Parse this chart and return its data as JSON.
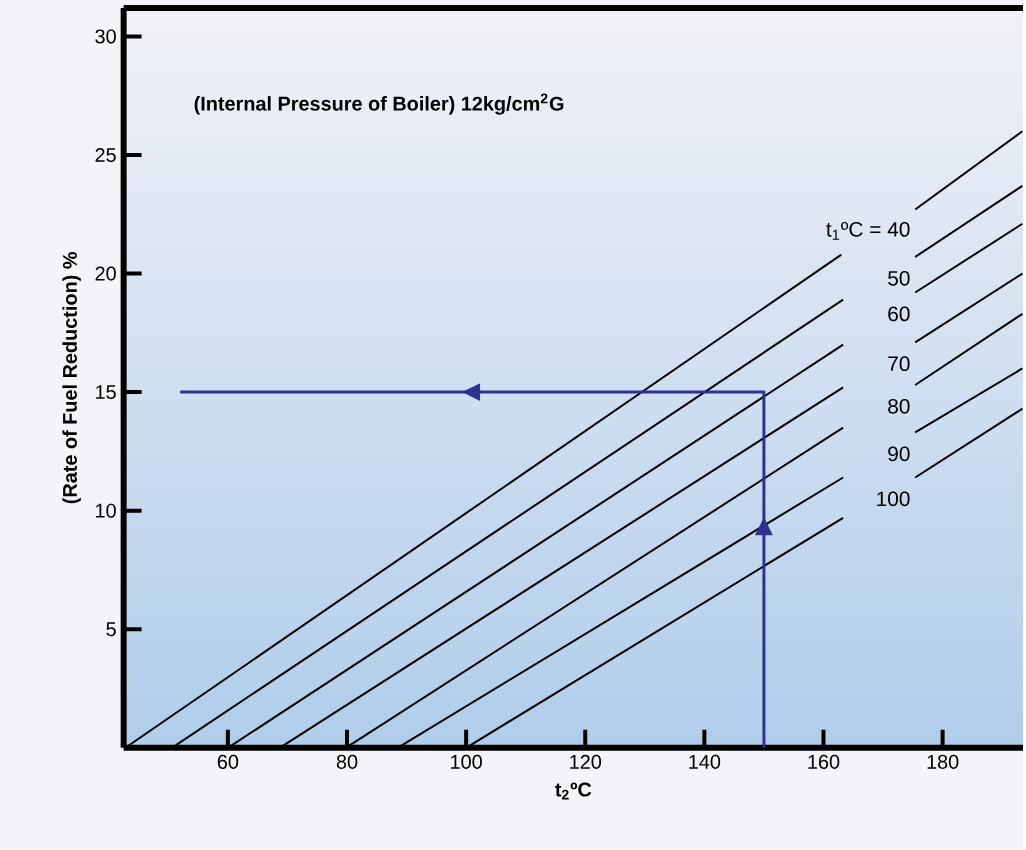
{
  "chart_data": {
    "type": "line",
    "title": "(Internal Pressure of Boiler) 12kg/cm$^{2}$G",
    "xlabel": "t$_{2}$ºC",
    "ylabel": "(Rate of Fuel Reduction) %",
    "xlim": [
      42.5,
      193.5
    ],
    "ylim": [
      0,
      31.2
    ],
    "xticks": [
      60,
      80,
      100,
      120,
      140,
      160,
      180
    ],
    "yticks": [
      5,
      10,
      15,
      20,
      25,
      30
    ],
    "grid": false,
    "legend": false,
    "marker": "none",
    "line_style": "solid",
    "series": [
      {
        "name": "t$_{1}$ºC = 40",
        "color": "#000000",
        "x": [
          42.8,
          163.0,
          169.2,
          175.4,
          193.4
        ],
        "values": [
          0,
          20.8,
          null,
          22.7,
          26.0
        ]
      },
      {
        "name": "50",
        "color": "#000000",
        "x": [
          50.6,
          163.3,
          169.2,
          175.4,
          193.4
        ],
        "values": [
          0,
          18.9,
          null,
          20.7,
          23.7
        ]
      },
      {
        "name": "60",
        "color": "#000000",
        "x": [
          60.0,
          163.3,
          169.2,
          175.4,
          193.4
        ],
        "values": [
          0,
          17.0,
          null,
          19.2,
          22.1
        ]
      },
      {
        "name": "70",
        "color": "#000000",
        "x": [
          68.7,
          163.3,
          169.2,
          175.4,
          193.4
        ],
        "values": [
          0,
          15.2,
          null,
          17.1,
          20.0
        ]
      },
      {
        "name": "80",
        "color": "#000000",
        "x": [
          79.8,
          163.3,
          169.2,
          175.4,
          193.4
        ],
        "values": [
          0,
          13.5,
          null,
          15.3,
          18.3
        ]
      },
      {
        "name": "90",
        "color": "#000000",
        "x": [
          88.5,
          163.3,
          169.2,
          175.4,
          193.4
        ],
        "values": [
          0,
          11.4,
          null,
          13.3,
          16.0
        ]
      },
      {
        "name": "100",
        "color": "#000000",
        "x": [
          100.0,
          163.3,
          169.2,
          175.4,
          193.4
        ],
        "values": [
          0,
          9.7,
          null,
          11.4,
          14.3
        ]
      },
      {
        "color": "#2e3192",
        "x": [
          150,
          150,
          52
        ],
        "values": [
          0,
          15,
          15
        ]
      }
    ]
  }
}
